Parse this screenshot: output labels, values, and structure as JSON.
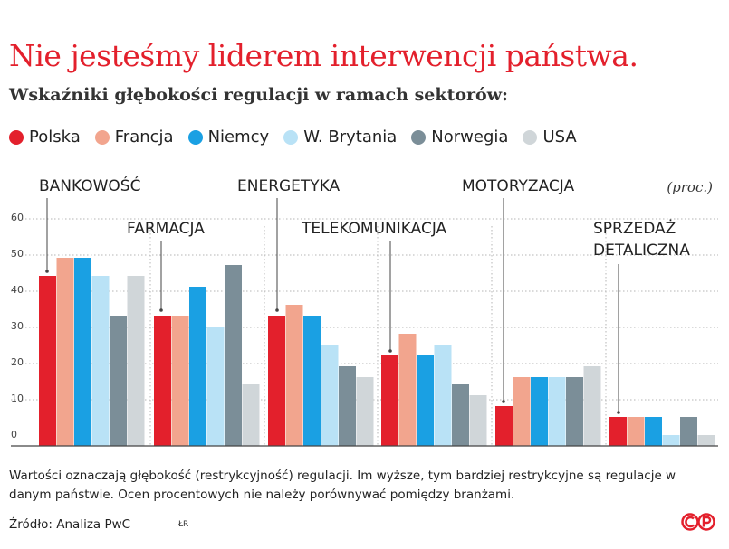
{
  "title": "Nie jesteśmy liderem interwencji państwa.",
  "subtitle": "Wskaźniki głębokości regulacji w ramach sektorów:",
  "colors": {
    "Polska": "#e3202c",
    "Francja": "#f2a58e",
    "Niemcy": "#1aa0e3",
    "W. Brytania": "#b9e2f6",
    "Norwegia": "#7b8e98",
    "USA": "#d0d6d9"
  },
  "chart_data": {
    "type": "bar",
    "unit_label": "(proc.)",
    "categories": [
      "BANKOWOŚĆ",
      "FARMACJA",
      "ENERGETYKA",
      "TELEKOMUNIKACJA",
      "MOTORYZACJA",
      "SPRZEDAŻ DETALICZNA"
    ],
    "series": [
      {
        "name": "Polska",
        "values": [
          47,
          36,
          36,
          25,
          11,
          8
        ]
      },
      {
        "name": "Francja",
        "values": [
          52,
          36,
          39,
          31,
          19,
          8
        ]
      },
      {
        "name": "Niemcy",
        "values": [
          52,
          44,
          36,
          25,
          19,
          8
        ]
      },
      {
        "name": "W. Brytania",
        "values": [
          47,
          33,
          28,
          28,
          19,
          3
        ]
      },
      {
        "name": "Norwegia",
        "values": [
          36,
          50,
          22,
          17,
          19,
          8
        ]
      },
      {
        "name": "USA",
        "values": [
          47,
          17,
          19,
          14,
          22,
          3
        ]
      }
    ],
    "yticks": [
      0,
      10,
      20,
      30,
      40,
      50,
      60
    ],
    "ylim": [
      0,
      60
    ],
    "grid": true
  },
  "note": "Wartości oznaczają głębokość (restrykcyjność) regulacji. Im wyższe, tym bardziej restrykcyjne są regulacje w danym państwie. Ocen procentowych nie należy porównywać pomiędzy branżami.",
  "source": "Źródło: Analiza PwC",
  "credit": "ŁR",
  "logo": "cp-logo"
}
